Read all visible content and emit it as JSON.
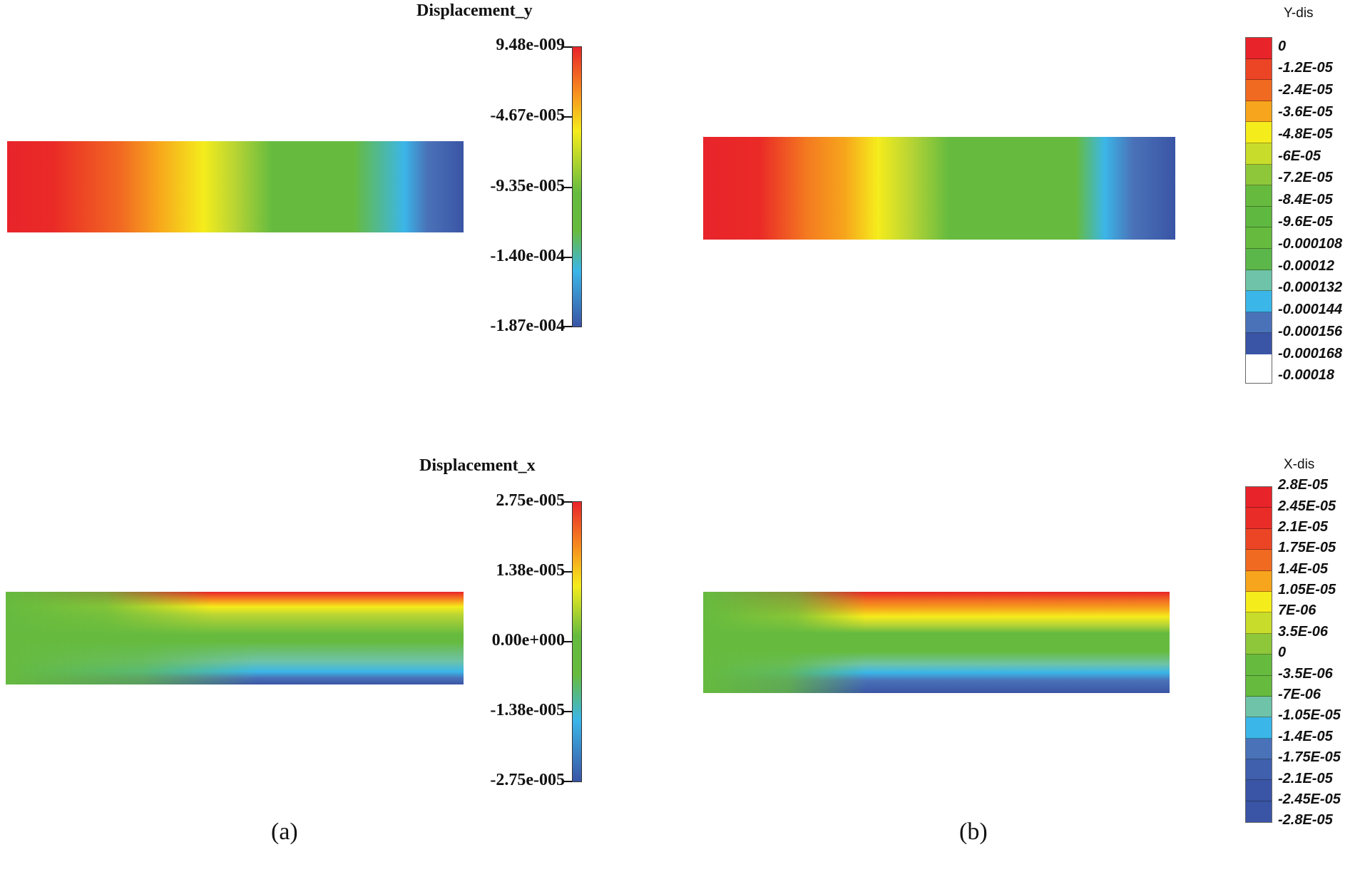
{
  "panel_a": {
    "caption": "(a)",
    "top": {
      "title": "Displacement_y",
      "ticks": [
        "9.48e-009",
        "-4.67e-005",
        "-9.35e-005",
        "-1.40e-004",
        "-1.87e-004"
      ]
    },
    "bottom": {
      "title": "Displacement_x",
      "ticks": [
        "2.75e-005",
        "1.38e-005",
        "0.00e+000",
        "-1.38e-005",
        "-2.75e-005"
      ]
    }
  },
  "panel_b": {
    "caption": "(b)",
    "top": {
      "title": "Y-dis",
      "levels": [
        "0",
        "-1.2E-05",
        "-2.4E-05",
        "-3.6E-05",
        "-4.8E-05",
        "-6E-05",
        "-7.2E-05",
        "-8.4E-05",
        "-9.6E-05",
        "-0.000108",
        "-0.00012",
        "-0.000132",
        "-0.000144",
        "-0.000156",
        "-0.000168",
        "-0.00018"
      ]
    },
    "bottom": {
      "title": "X-dis",
      "levels": [
        "2.8E-05",
        "2.45E-05",
        "2.1E-05",
        "1.75E-05",
        "1.4E-05",
        "1.05E-05",
        "7E-06",
        "3.5E-06",
        "0",
        "-3.5E-06",
        "-7E-06",
        "-1.05E-05",
        "-1.4E-05",
        "-1.75E-05",
        "-2.1E-05",
        "-2.45E-05",
        "-2.8E-05"
      ]
    }
  },
  "colors": {
    "red": "#e8242a",
    "orange": "#f7931e",
    "yellow": "#f5ec1c",
    "green": "#66bb3f",
    "cyan": "#3bb6e8",
    "blue": "#3a55a5"
  }
}
